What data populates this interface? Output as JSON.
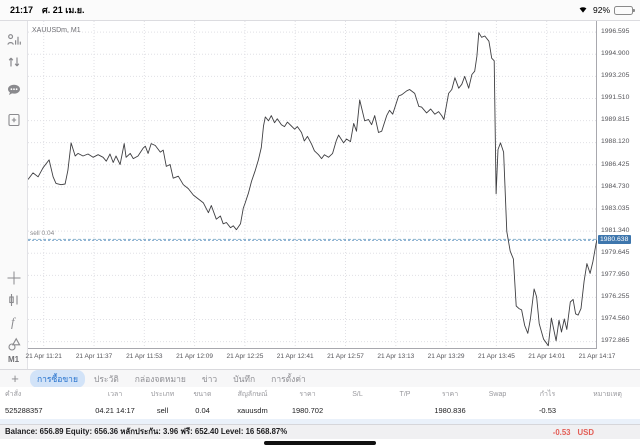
{
  "status_bar": {
    "time": "21:17",
    "date": "ศ. 21 เม.ย.",
    "battery_percent": "92%"
  },
  "sidebar": {
    "timeframe_label": "M1"
  },
  "chart": {
    "symbol_label": "XAUUSDm, M1",
    "sell_line_label": "sell 0.04",
    "current_price_label": "1980.638"
  },
  "chart_data": {
    "type": "line",
    "title": "XAUUSDm, M1",
    "x_start_time": "21 Apr 11:16",
    "x_range": [
      0,
      181
    ],
    "y_range": [
      1972.3,
      1997.45
    ],
    "grid": true,
    "x_tick_labels": [
      "21 Apr 11:21",
      "21 Apr 11:37",
      "21 Apr 11:53",
      "21 Apr 12:09",
      "21 Apr 12:25",
      "21 Apr 12:41",
      "21 Apr 12:57",
      "21 Apr 13:13",
      "21 Apr 13:29",
      "21 Apr 13:45",
      "21 Apr 14:01",
      "21 Apr 14:17"
    ],
    "x_tick_t": [
      5,
      21,
      37,
      53,
      69,
      85,
      101,
      117,
      133,
      149,
      165,
      181
    ],
    "y_ticks": [
      "1996.595",
      "1994.900",
      "1993.205",
      "1991.510",
      "1989.815",
      "1988.120",
      "1986.425",
      "1984.730",
      "1983.035",
      "1981.340",
      "1979.645",
      "1977.950",
      "1976.255",
      "1974.560",
      "1972.865"
    ],
    "sell_line": {
      "label": "sell 0.04",
      "price": 1980.702
    },
    "current_price": {
      "label": "1980.638",
      "price": 1980.638
    },
    "points": [
      [
        0,
        1985.3
      ],
      [
        1.6,
        1985.8
      ],
      [
        3.2,
        1985.5
      ],
      [
        4.8,
        1986.2
      ],
      [
        6.7,
        1986.8
      ],
      [
        8,
        1985.5
      ],
      [
        8.9,
        1985.0
      ],
      [
        10.5,
        1984.9
      ],
      [
        11.8,
        1984.95
      ],
      [
        12.7,
        1986.0
      ],
      [
        13.7,
        1988.1
      ],
      [
        15,
        1987.1
      ],
      [
        15.9,
        1987.3
      ],
      [
        17.5,
        1987.1
      ],
      [
        19.1,
        1987.25
      ],
      [
        20.7,
        1987.0
      ],
      [
        22.3,
        1987.2
      ],
      [
        23.9,
        1987.0
      ],
      [
        24.9,
        1986.7
      ],
      [
        26.1,
        1987.25
      ],
      [
        27.1,
        1986.6
      ],
      [
        28,
        1987.1
      ],
      [
        29.3,
        1986.45
      ],
      [
        30.6,
        1988.05
      ],
      [
        31.2,
        1987.0
      ],
      [
        32.5,
        1987.3
      ],
      [
        33.5,
        1986.9
      ],
      [
        35,
        1987.1
      ],
      [
        36.6,
        1987.7
      ],
      [
        37.3,
        1987.85
      ],
      [
        38.2,
        1987.3
      ],
      [
        39.2,
        1988.05
      ],
      [
        40.5,
        1987.9
      ],
      [
        42.1,
        1987.4
      ],
      [
        43,
        1987.55
      ],
      [
        44,
        1986.3
      ],
      [
        45.2,
        1986.45
      ],
      [
        46.2,
        1985.4
      ],
      [
        47.8,
        1985.55
      ],
      [
        49.4,
        1984.9
      ],
      [
        51,
        1984.6
      ],
      [
        52.6,
        1984.1
      ],
      [
        54.2,
        1983.8
      ],
      [
        55.8,
        1983.5
      ],
      [
        57.4,
        1982.75
      ],
      [
        58.3,
        1983.3
      ],
      [
        59.9,
        1982.25
      ],
      [
        61.2,
        1982.5
      ],
      [
        62.1,
        1981.9
      ],
      [
        63.1,
        1982.0
      ],
      [
        64.4,
        1981.6
      ],
      [
        65.3,
        1981.75
      ],
      [
        66.3,
        1981.45
      ],
      [
        67.6,
        1981.9
      ],
      [
        68.5,
        1983.1
      ],
      [
        69.1,
        1983.5
      ],
      [
        70.1,
        1984.25
      ],
      [
        71.1,
        1985.15
      ],
      [
        72.3,
        1986.0
      ],
      [
        73.3,
        1986.8
      ],
      [
        74.2,
        1987.75
      ],
      [
        74.9,
        1989.4
      ],
      [
        75.5,
        1990.1
      ],
      [
        76.5,
        1989.8
      ],
      [
        77.4,
        1990.2
      ],
      [
        78.4,
        1989.65
      ],
      [
        79.3,
        1989.95
      ],
      [
        80.6,
        1989.5
      ],
      [
        81.6,
        1989.35
      ],
      [
        82.5,
        1989.7
      ],
      [
        83.8,
        1989.4
      ],
      [
        84.8,
        1989.15
      ],
      [
        85.7,
        1989.35
      ],
      [
        87,
        1988.9
      ],
      [
        87.9,
        1988.25
      ],
      [
        88.9,
        1988.6
      ],
      [
        90.2,
        1988.0
      ],
      [
        91.1,
        1987.5
      ],
      [
        92.4,
        1987.2
      ],
      [
        93.4,
        1986.9
      ],
      [
        94.3,
        1987.2
      ],
      [
        95.6,
        1987.0
      ],
      [
        96.9,
        1987.3
      ],
      [
        98.1,
        1988.3
      ],
      [
        98.8,
        1988.7
      ],
      [
        100.4,
        1988.1
      ],
      [
        101.3,
        1988.4
      ],
      [
        102.6,
        1988.2
      ],
      [
        103.6,
        1989.6
      ],
      [
        104.5,
        1989.0
      ],
      [
        105.5,
        1991.4
      ],
      [
        107.1,
        1989.8
      ],
      [
        108.3,
        1989.9
      ],
      [
        109.3,
        1989.5
      ],
      [
        110.3,
        1990.2
      ],
      [
        111.5,
        1988.9
      ],
      [
        112.5,
        1989.0
      ],
      [
        114.1,
        1990.2
      ],
      [
        115,
        1990.6
      ],
      [
        116,
        1990.3
      ],
      [
        117.9,
        1991.7
      ],
      [
        118.9,
        1991.8
      ],
      [
        120.5,
        1992.1
      ],
      [
        121.4,
        1992.2
      ],
      [
        123,
        1991.9
      ],
      [
        124.3,
        1990.9
      ],
      [
        125.2,
        1990.85
      ],
      [
        126.8,
        1990.4
      ],
      [
        128.1,
        1990.7
      ],
      [
        129.4,
        1990.3
      ],
      [
        130.6,
        1990.5
      ],
      [
        131.6,
        1990.2
      ],
      [
        132.3,
        1989.9
      ],
      [
        133.8,
        1991.9
      ],
      [
        134.8,
        1992.2
      ],
      [
        135.8,
        1993.1
      ],
      [
        137,
        1992.3
      ],
      [
        138,
        1992.6
      ],
      [
        138.9,
        1993.2
      ],
      [
        140.2,
        1992.3
      ],
      [
        141.2,
        1993.35
      ],
      [
        142.1,
        1993.6
      ],
      [
        142.8,
        1994.75
      ],
      [
        143.4,
        1996.55
      ],
      [
        144.3,
        1996.2
      ],
      [
        145.3,
        1996.3
      ],
      [
        146.6,
        1995.9
      ],
      [
        146.9,
        1995.5
      ],
      [
        147.5,
        1994.6
      ],
      [
        148.3,
        1994.4
      ],
      [
        148.9,
        1984.2
      ],
      [
        149.5,
        1987.6
      ],
      [
        150.3,
        1988.1
      ],
      [
        151.3,
        1987.4
      ],
      [
        152.3,
        1981.3
      ],
      [
        153.4,
        1979.8
      ],
      [
        154.4,
        1979.2
      ],
      [
        155.3,
        1975.6
      ],
      [
        156.2,
        1975.4
      ],
      [
        157,
        1975.3
      ],
      [
        158,
        1974.1
      ],
      [
        159,
        1973.5
      ],
      [
        159.8,
        1974.6
      ],
      [
        161,
        1976.9
      ],
      [
        161.8,
        1976.3
      ],
      [
        162.6,
        1974.25
      ],
      [
        164,
        1973.05
      ],
      [
        165.5,
        1972.55
      ],
      [
        166.5,
        1974.67
      ],
      [
        168,
        1972.93
      ],
      [
        168.9,
        1974.5
      ],
      [
        169.7,
        1973.6
      ],
      [
        170.6,
        1974.6
      ],
      [
        171.4,
        1973.8
      ],
      [
        172.5,
        1975.9
      ],
      [
        173.4,
        1976.1
      ],
      [
        174.2,
        1975.0
      ],
      [
        175,
        1974.9
      ],
      [
        175.9,
        1975.4
      ],
      [
        176.9,
        1977.5
      ],
      [
        177.8,
        1978.85
      ],
      [
        178.8,
        1978.1
      ],
      [
        179.7,
        1979.0
      ],
      [
        180.7,
        1980.4
      ],
      [
        181,
        1980.64
      ]
    ]
  },
  "tabs": {
    "plus": "+",
    "items": [
      {
        "label": "การซื้อขาย",
        "selected": true
      },
      {
        "label": "ประวัติ",
        "selected": false
      },
      {
        "label": "กล่องจดหมาย",
        "selected": false
      },
      {
        "label": "ข่าว",
        "selected": false
      },
      {
        "label": "บันทึก",
        "selected": false
      },
      {
        "label": "การตั้งค่า",
        "selected": false
      }
    ]
  },
  "table": {
    "headers": [
      "คำสั่ง",
      "เวลา",
      "ประเภท",
      "ขนาด",
      "สัญลักษณ์",
      "ราคา",
      "S/L",
      "T/P",
      "ราคา",
      "Swap",
      "กำไร",
      "หมายเหตุ"
    ],
    "rows": [
      [
        "525288357",
        "04.21 14:17",
        "sell",
        "0.04",
        "xauusdm",
        "1980.702",
        "",
        "",
        "1980.836",
        "",
        "-0.53",
        ""
      ]
    ],
    "negative_cols": [
      2,
      10
    ]
  },
  "balance_bar": {
    "text": "Balance: 656.89 Equity: 656.36 หลักประกัน: 3.96 ฟรี: 652.40 Level: 16 568.87%",
    "profit": "-0.53",
    "currency": "USD"
  },
  "colors": {
    "line": "#3f3f42",
    "grid": "#e0e0e5",
    "axis": "#a8a8ae",
    "sell_line": "#8fb6cf",
    "current_line": "#4e86bb",
    "price_box_bg": "#3e76ad",
    "tab_selected_bg": "#d2e3f8",
    "tab_selected_text": "#2471cd",
    "negative": "#e35d55"
  }
}
